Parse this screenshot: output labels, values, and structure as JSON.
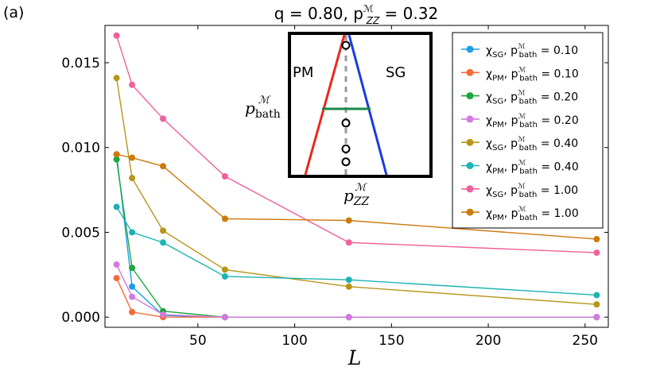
{
  "chart_data": {
    "type": "line",
    "panel_label": "(a)",
    "title": "q = 0.80, p_ZZ^M = 0.32",
    "title_parts": {
      "base": "q = 0.80, p",
      "sup": "ℳ",
      "sub": "ZZ",
      "tail": " = 0.32"
    },
    "xlabel": "L",
    "ylabel": "",
    "xlim": [
      2,
      262
    ],
    "ylim": [
      -0.0006,
      0.0172
    ],
    "xticks": [
      50,
      100,
      150,
      200,
      250
    ],
    "xtick_labels": [
      "50",
      "100",
      "150",
      "200",
      "250"
    ],
    "yticks": [
      0.0,
      0.005,
      0.01,
      0.015
    ],
    "ytick_labels": [
      "0.000",
      "0.005",
      "0.010",
      "0.015"
    ],
    "x": [
      8,
      16,
      32,
      64,
      128,
      256
    ],
    "series": [
      {
        "name": "χ_SG, p_bath^M = 0.10",
        "chi": "SG",
        "p": "0.10",
        "color": "#1f9ee8",
        "values": [
          0.0096,
          0.0018,
          0.0001,
          0.0,
          0.0,
          0.0
        ]
      },
      {
        "name": "χ_PM, p_bath^M = 0.10",
        "chi": "PM",
        "p": "0.10",
        "color": "#f26b3a",
        "values": [
          0.0023,
          0.0003,
          0.0,
          0.0,
          0.0,
          0.0
        ]
      },
      {
        "name": "χ_SG, p_bath^M = 0.20",
        "chi": "SG",
        "p": "0.20",
        "color": "#1fa63c",
        "values": [
          0.0093,
          0.0029,
          0.00035,
          0.0,
          0.0,
          0.0
        ]
      },
      {
        "name": "χ_PM, p_bath^M = 0.20",
        "chi": "PM",
        "p": "0.20",
        "color": "#d27ae0",
        "values": [
          0.0031,
          0.0012,
          0.00015,
          0.0,
          0.0,
          0.0
        ]
      },
      {
        "name": "χ_SG, p_bath^M = 0.40",
        "chi": "SG",
        "p": "0.40",
        "color": "#b8951a",
        "values": [
          0.0141,
          0.0082,
          0.0051,
          0.0028,
          0.0018,
          0.00075
        ]
      },
      {
        "name": "χ_PM, p_bath^M = 0.40",
        "chi": "PM",
        "p": "0.40",
        "color": "#1eb3b3",
        "values": [
          0.0065,
          0.005,
          0.0044,
          0.0024,
          0.0022,
          0.0013
        ]
      },
      {
        "name": "χ_SG, p_bath^M = 1.00",
        "chi": "SG",
        "p": "1.00",
        "color": "#f0609a",
        "values": [
          0.0166,
          0.0137,
          0.0117,
          0.0083,
          0.0044,
          0.0038
        ]
      },
      {
        "name": "χ_PM, p_bath^M = 1.00",
        "chi": "PM",
        "p": "1.00",
        "color": "#cc7a0e",
        "values": [
          0.0096,
          0.0094,
          0.0089,
          0.0058,
          0.0057,
          0.0046
        ]
      }
    ],
    "legend": {
      "placement": "top-right"
    },
    "inset": {
      "type": "phase-diagram",
      "region_left": "PM",
      "region_right": "SG",
      "xlabel": "p_ZZ^M",
      "ylabel": "p_bath^M",
      "label_sub_x": "ZZ",
      "label_sub_y": "bath",
      "label_sup": "ℳ",
      "pm_boundary_color": "#e8281e",
      "sg_boundary_color": "#1a3ce0",
      "tie_line_color": "#1a8a4a",
      "cut_line_color": "#9a9a9a",
      "marked_points_p_bath": [
        1.0,
        0.4,
        0.2,
        0.1
      ]
    }
  }
}
